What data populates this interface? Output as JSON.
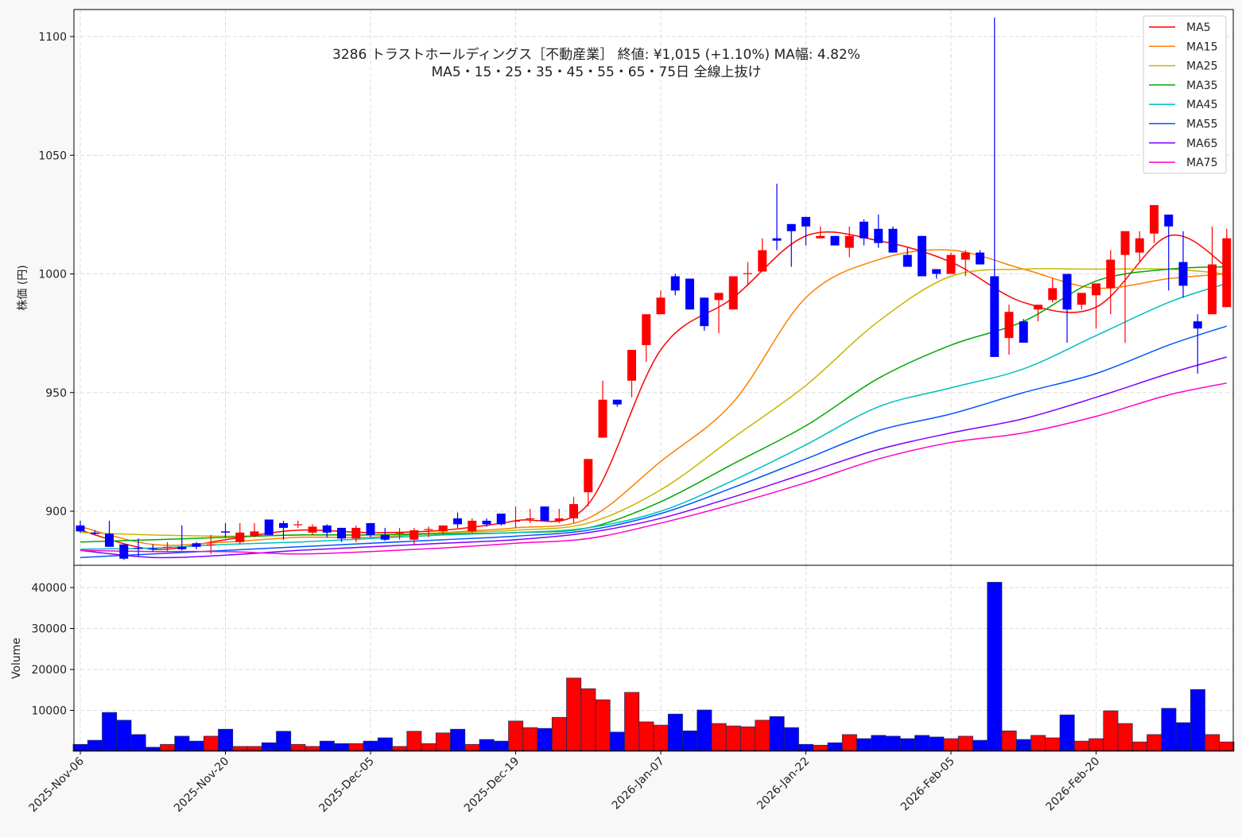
{
  "chart_data": [
    {
      "type": "candlestick",
      "title": "3286  トラストホールディングス［不動産業］ 終値: ¥1,015 (+1.10%)   MA幅: 4.82%",
      "subtitle": "MA5・15・25・35・45・55・65・75日 全線上抜け",
      "ylabel": "株価 (円)",
      "ylim": [
        877,
        1111
      ],
      "yticks": [
        "900",
        "950",
        "1000",
        "1050",
        "1100"
      ],
      "grid": true,
      "legend_position": "top-right",
      "xtick_labels": [
        "2025-Nov-06",
        "2025-Nov-20",
        "2025-Dec-05",
        "2025-Dec-19",
        "2026-Jan-07",
        "2026-Jan-22",
        "2026-Feb-05",
        "2026-Feb-20"
      ],
      "xtick_every": 10,
      "up_color": "#ff0000",
      "down_color": "#0000ff",
      "ohlc": [
        [
          894,
          896,
          891,
          891.5
        ],
        [
          891,
          892,
          890,
          890.5
        ],
        [
          890.5,
          896,
          885,
          885
        ],
        [
          886,
          886,
          879.5,
          880
        ],
        [
          884.5,
          888.5,
          881,
          884.3
        ],
        [
          884.3,
          886,
          883,
          884
        ],
        [
          885,
          887,
          883,
          885
        ],
        [
          885,
          894,
          883.5,
          884
        ],
        [
          886.5,
          887,
          884,
          885
        ],
        [
          886,
          890,
          882,
          886
        ],
        [
          891.5,
          895,
          889,
          891
        ],
        [
          887,
          895,
          886,
          891
        ],
        [
          889.5,
          895,
          889,
          891.5
        ],
        [
          896.5,
          896.5,
          890,
          890
        ],
        [
          895,
          896,
          888,
          893
        ],
        [
          894.5,
          896,
          893,
          894.5
        ],
        [
          891,
          894.5,
          890,
          893.5
        ],
        [
          894,
          894.5,
          889,
          891
        ],
        [
          893,
          893,
          887,
          888.5
        ],
        [
          888.5,
          894,
          887,
          893
        ],
        [
          895,
          895,
          889,
          890
        ],
        [
          890,
          893,
          887.5,
          888
        ],
        [
          891,
          893,
          888,
          891
        ],
        [
          888,
          893,
          886,
          892
        ],
        [
          892.5,
          893.5,
          889,
          892.5
        ],
        [
          891.5,
          894,
          890,
          894
        ],
        [
          897,
          899.5,
          893,
          894.5
        ],
        [
          891.5,
          897,
          891,
          896
        ],
        [
          896,
          897,
          893.5,
          894.5
        ],
        [
          899,
          899,
          894,
          894.5
        ],
        [
          896,
          902,
          893,
          896
        ],
        [
          897,
          901,
          895,
          897
        ],
        [
          902,
          902,
          896,
          896
        ],
        [
          896,
          901,
          895,
          897
        ],
        [
          897,
          906,
          895,
          903
        ],
        [
          908,
          922,
          902,
          922
        ],
        [
          931,
          955,
          931,
          947
        ],
        [
          947,
          947,
          944,
          945
        ],
        [
          955,
          968,
          948,
          968
        ],
        [
          970,
          983,
          963,
          983
        ],
        [
          983,
          993,
          983,
          990
        ],
        [
          999,
          1000,
          991,
          993
        ],
        [
          998,
          998,
          985,
          985
        ],
        [
          990,
          990,
          976,
          978
        ],
        [
          989,
          992,
          975,
          992
        ],
        [
          985,
          999,
          985,
          999
        ],
        [
          1000,
          1005,
          995,
          1000.3
        ],
        [
          1001,
          1015,
          1001,
          1010
        ],
        [
          1015,
          1038,
          1010,
          1014
        ],
        [
          1021,
          1021,
          1003,
          1018
        ],
        [
          1024,
          1024,
          1012,
          1020
        ],
        [
          1015,
          1020,
          1015,
          1016
        ],
        [
          1016,
          1016,
          1012,
          1012
        ],
        [
          1011,
          1020,
          1007,
          1016
        ],
        [
          1022,
          1023,
          1012,
          1015
        ],
        [
          1019,
          1025,
          1011,
          1013
        ],
        [
          1019,
          1020,
          1009,
          1009
        ],
        [
          1008,
          1011,
          1003,
          1003
        ],
        [
          1016,
          1016,
          999,
          999
        ],
        [
          1002,
          1002,
          998,
          1000
        ],
        [
          1000,
          1009,
          1000,
          1008
        ],
        [
          1006,
          1010,
          999,
          1009
        ],
        [
          1009,
          1010,
          1004,
          1004
        ],
        [
          999,
          1108,
          965,
          965
        ],
        [
          973,
          987,
          966,
          984
        ],
        [
          980,
          981,
          971,
          971
        ],
        [
          985,
          987,
          980,
          987
        ],
        [
          989,
          998,
          988,
          994
        ],
        [
          1000,
          1000,
          971,
          985
        ],
        [
          987,
          992,
          985,
          992
        ],
        [
          991,
          996,
          977,
          996
        ],
        [
          994,
          1010,
          983,
          1006
        ],
        [
          1008,
          1018,
          971,
          1018
        ],
        [
          1009,
          1018,
          1005,
          1015
        ],
        [
          1017,
          1029,
          1013,
          1029
        ],
        [
          1025,
          1025,
          993,
          1020
        ],
        [
          1005,
          1018,
          990,
          995
        ],
        [
          980,
          983,
          958,
          977
        ],
        [
          983,
          1020,
          983,
          1004
        ],
        [
          986,
          1019,
          986,
          1015
        ]
      ],
      "moving_averages": {
        "sample_index": [
          0,
          5,
          10,
          15,
          20,
          25,
          30,
          35,
          40,
          45,
          50,
          55,
          60,
          65,
          70,
          75,
          79
        ],
        "series": [
          {
            "name": "MA5",
            "color": "#ff0000",
            "values": [
              892,
              884,
              888,
              892,
              891,
              892,
              896,
              903,
              968,
              990,
              1016,
              1014,
              1005,
              988,
              986,
              1016,
              1003
            ]
          },
          {
            "name": "MA15",
            "color": "#ff7f00",
            "values": [
              893.5,
              886,
              887,
              889,
              889,
              891,
              893,
              897,
              921,
              946,
              990,
              1006,
              1010,
              1002,
              994,
              998,
              1000
            ]
          },
          {
            "name": "MA25",
            "color": "#c8b400",
            "values": [
              891,
              890,
              889.5,
              890,
              890,
              891,
              892,
              895,
              909,
              931,
              953,
              980,
              999,
              1002,
              1002,
              1002,
              1000
            ]
          },
          {
            "name": "MA35",
            "color": "#00aa00",
            "values": [
              887,
              888,
              889,
              890,
              890,
              890.5,
              891,
              893,
              904,
              920,
              936,
              956,
              970,
              980,
              997,
              1002,
              1003
            ]
          },
          {
            "name": "MA45",
            "color": "#00bfbf",
            "values": [
              884,
              884.5,
              886,
              887,
              888.5,
              890,
              891,
              893,
              900,
              913,
              928,
              944,
              952,
              960,
              974,
              988,
              996
            ]
          },
          {
            "name": "MA55",
            "color": "#0055ff",
            "values": [
              880.5,
              882,
              883.5,
              885,
              886.5,
              888,
              889.5,
              892,
              899,
              910,
              922,
              934,
              941,
              950,
              958,
              970,
              978
            ]
          },
          {
            "name": "MA65",
            "color": "#8000ff",
            "values": [
              883.5,
              880.5,
              881.5,
              883.5,
              885,
              886.5,
              888,
              891,
              897,
              906,
              916,
              926,
              933,
              939,
              948,
              958,
              965
            ]
          },
          {
            "name": "MA75",
            "color": "#ff00cc",
            "values": [
              883.5,
              883,
              883,
              882,
              883,
              884.5,
              886.5,
              888.5,
              895,
              903,
              912,
              922,
              929,
              933,
              940,
              949,
              954
            ]
          }
        ]
      }
    },
    {
      "type": "bar",
      "ylabel": "Volume",
      "ylim": [
        0,
        43000
      ],
      "yticks": [
        "10000",
        "20000",
        "30000",
        "40000"
      ],
      "values": [
        1700,
        2700,
        9500,
        7600,
        4100,
        1000,
        1700,
        3700,
        2500,
        3700,
        5400,
        1200,
        1200,
        2100,
        4900,
        1700,
        1200,
        2500,
        1900,
        1900,
        2500,
        3300,
        1200,
        4900,
        1900,
        4500,
        5400,
        1700,
        2900,
        2500,
        7400,
        5800,
        5600,
        8300,
        17900,
        15300,
        12600,
        4700,
        14400,
        7200,
        6400,
        9100,
        5000,
        10100,
        6800,
        6200,
        6000,
        7600,
        8500,
        5800,
        1700,
        1500,
        2100,
        4100,
        3100,
        3900,
        3700,
        3100,
        3900,
        3500,
        3100,
        3700,
        2700,
        41300,
        5000,
        2900,
        3900,
        3300,
        8900,
        2500,
        3100,
        9900,
        6800,
        2300,
        4100,
        10500,
        7000,
        15100,
        4100,
        2300
      ]
    }
  ]
}
